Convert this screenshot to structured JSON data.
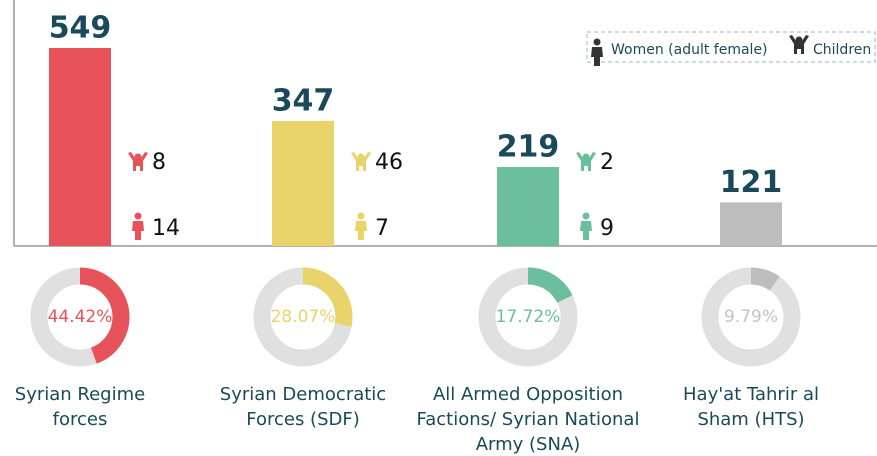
{
  "chart_data": {
    "type": "bar",
    "categories": [
      "Syrian Regime forces",
      "Syrian Democratic Forces (SDF)",
      "All Armed Opposition Factions/ Syrian National Army (SNA)",
      "Hay'at Tahrir al Sham (HTS)"
    ],
    "values": [
      549,
      347,
      219,
      121
    ],
    "colors": [
      "#e8525a",
      "#e8d46a",
      "#6cbf9c",
      "#bdbdbd"
    ],
    "series": [
      {
        "name": "Women (adult female)",
        "values": [
          14,
          7,
          9,
          null
        ]
      },
      {
        "name": "Children",
        "values": [
          8,
          46,
          2,
          null
        ]
      }
    ],
    "percentages": [
      44.42,
      28.07,
      17.72,
      9.79
    ],
    "percentage_labels": [
      "44.42%",
      "28.07%",
      "17.72%",
      "9.79%"
    ]
  }
}
